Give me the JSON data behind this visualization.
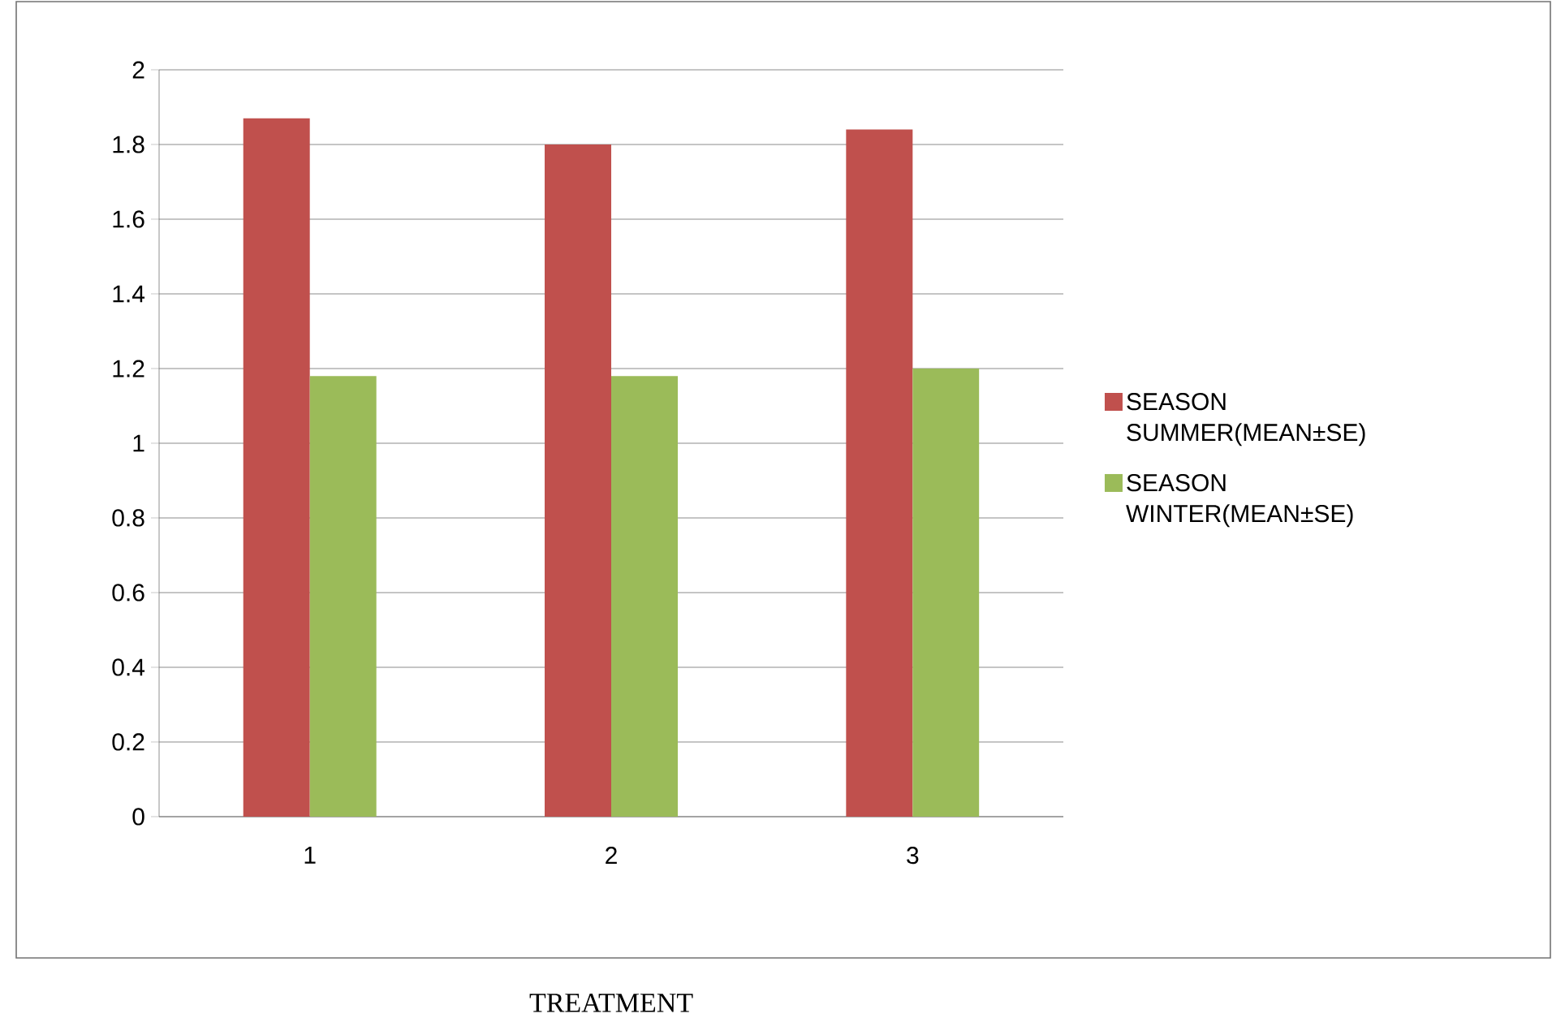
{
  "chart_data": {
    "type": "bar",
    "xlabel": "TREATMENT",
    "categories": [
      "1",
      "2",
      "3"
    ],
    "series": [
      {
        "name": "SEASON SUMMER(MEAN±SE)",
        "color": "#c0504d",
        "values": [
          1.87,
          1.8,
          1.84
        ]
      },
      {
        "name": "SEASON WINTER(MEAN±SE)",
        "color": "#9bbb59",
        "values": [
          1.18,
          1.18,
          1.2
        ]
      }
    ],
    "ylim": [
      0,
      2
    ],
    "yticks": [
      0,
      0.2,
      0.4,
      0.6,
      0.8,
      1,
      1.2,
      1.4,
      1.6,
      1.8,
      2
    ],
    "grid": "y",
    "legend": "right"
  }
}
